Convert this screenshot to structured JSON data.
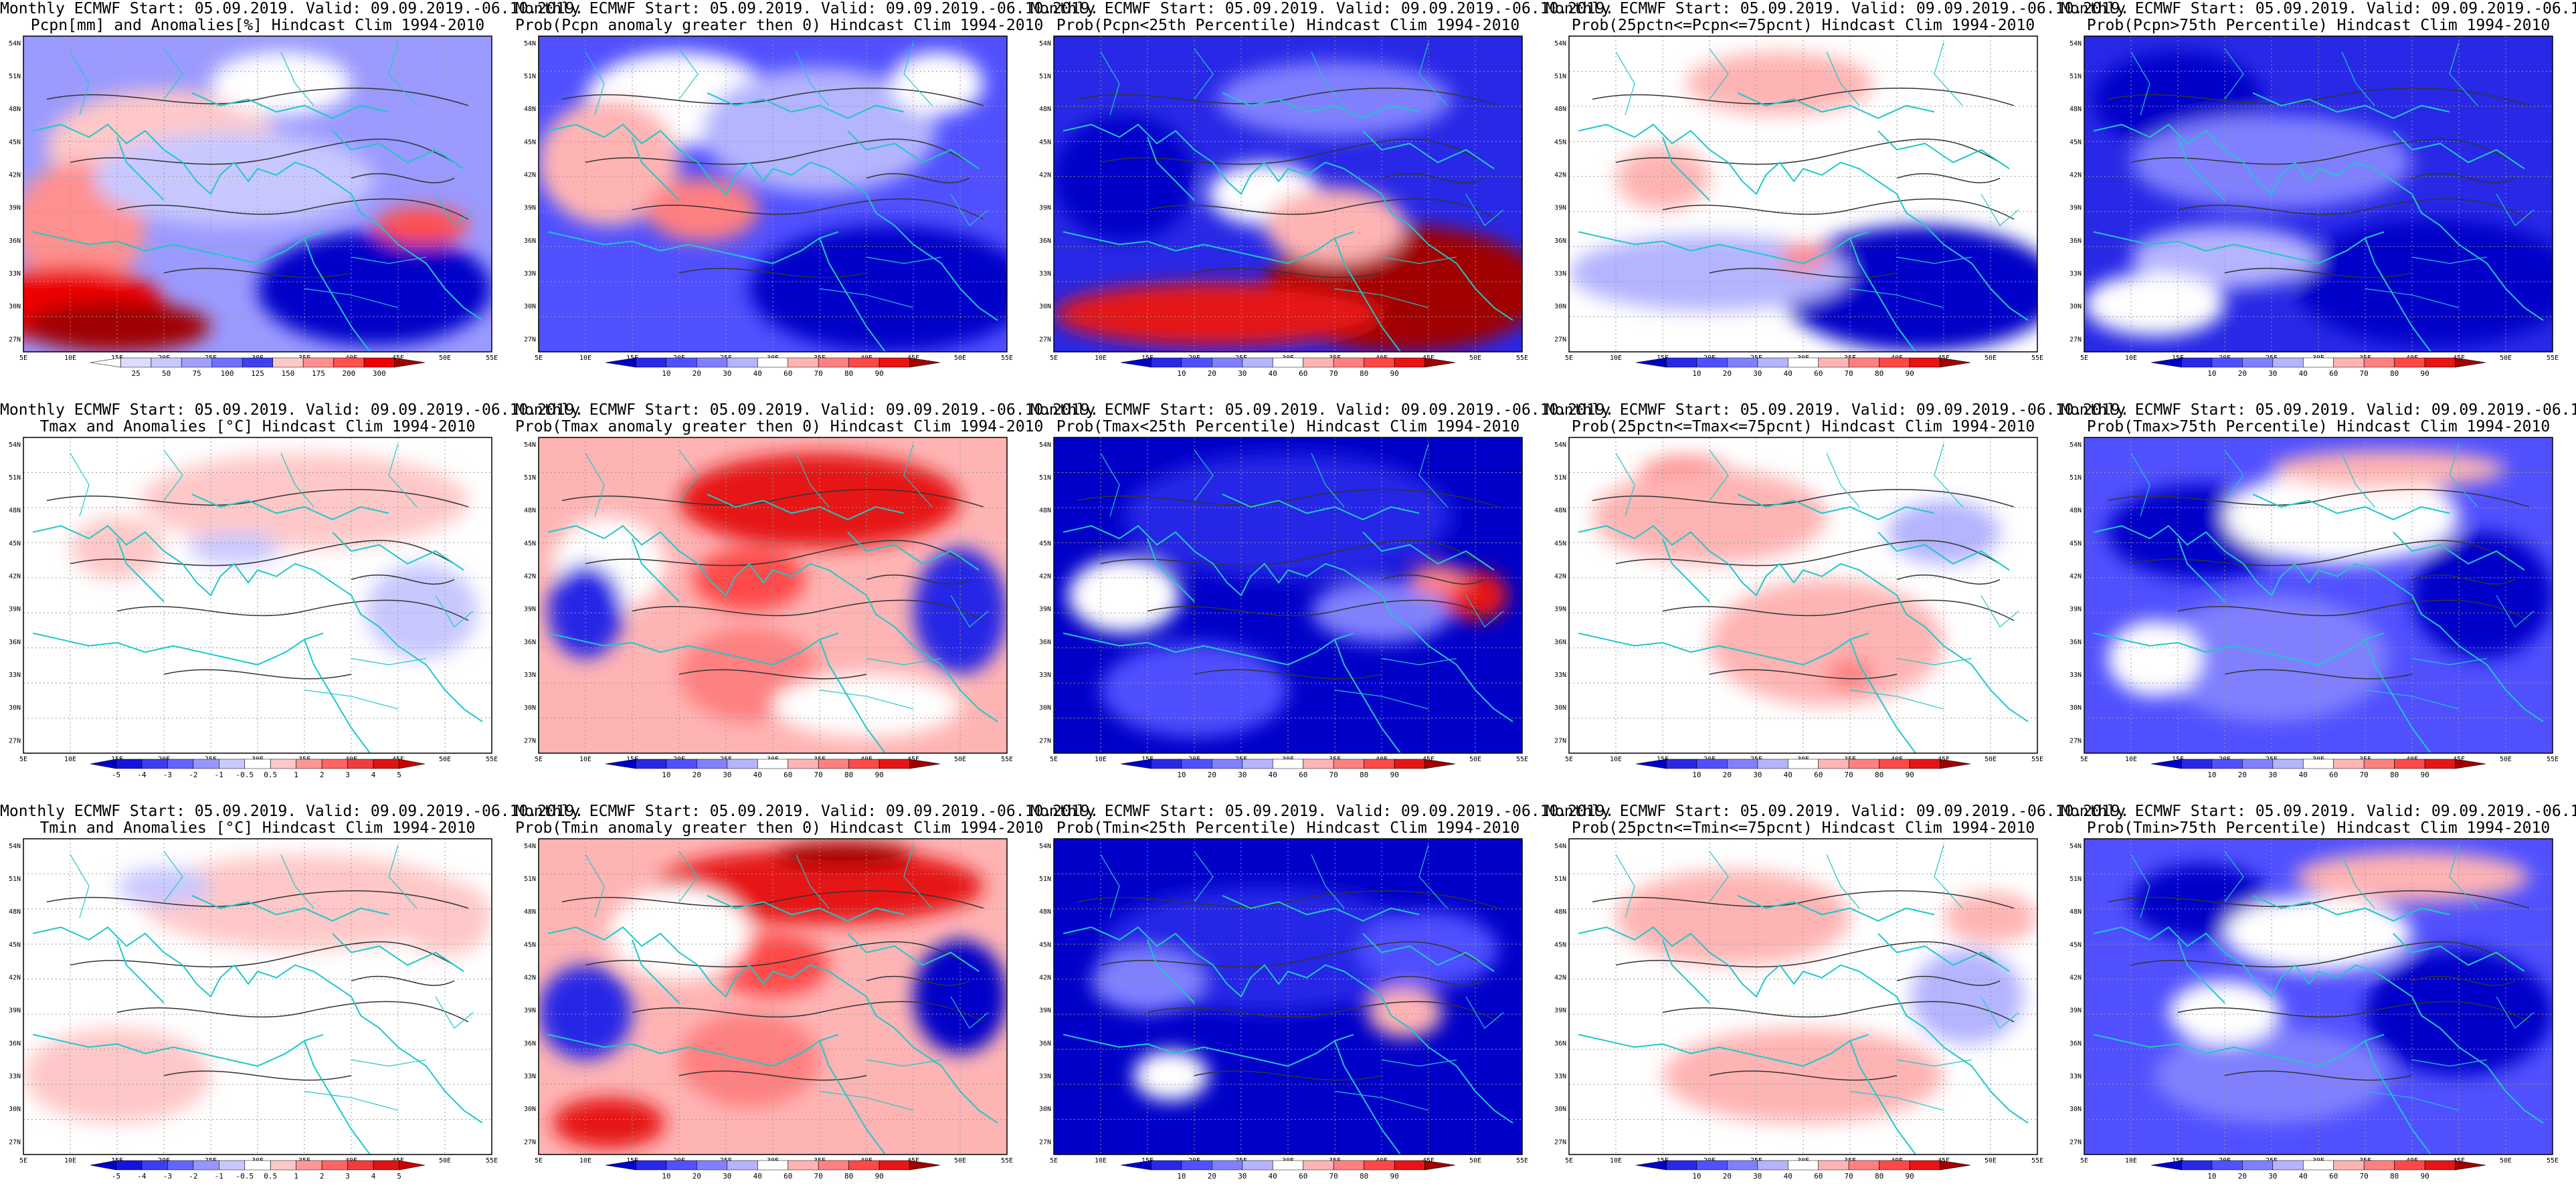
{
  "common": {
    "title_line1": "Monthly ECMWF Start: 05.09.2019. Valid: 09.09.2019.-06.10.2019."
  },
  "axes": {
    "lon_labels": [
      "5E",
      "10E",
      "15E",
      "20E",
      "25E",
      "30E",
      "35E",
      "40E",
      "45E",
      "50E",
      "55E"
    ],
    "lat_labels": [
      "27N",
      "30N",
      "33N",
      "36N",
      "39N",
      "42N",
      "45N",
      "48N",
      "51N",
      "54N"
    ]
  },
  "colorbars": {
    "pcpn_anom": {
      "labels": [
        "25",
        "50",
        "75",
        "100",
        "125",
        "150",
        "175",
        "200",
        "300"
      ],
      "colors": [
        "#ffffff",
        "#dcdcff",
        "#c8c8ff",
        "#a0a0ff",
        "#7070ff",
        "#4040f0",
        "#ffc8c8",
        "#ff9090",
        "#ff5050",
        "#ee0000",
        "#a00000"
      ]
    },
    "prob": {
      "labels": [
        "10",
        "20",
        "30",
        "40",
        "60",
        "70",
        "80",
        "90"
      ],
      "colors": [
        "#0000c8",
        "#2828e6",
        "#5050ff",
        "#8080ff",
        "#b4b4ff",
        "#ffffff",
        "#ffb4b4",
        "#ff8080",
        "#ff4848",
        "#e61414",
        "#a00000"
      ]
    },
    "temp_anom": {
      "labels": [
        "-5",
        "-4",
        "-3",
        "-2",
        "-1",
        "-0.5",
        "0.5",
        "1",
        "2",
        "3",
        "4",
        "5"
      ],
      "colors": [
        "#0000c8",
        "#1414dc",
        "#3c3cf0",
        "#6464ff",
        "#9696ff",
        "#c8c8ff",
        "#ffffff",
        "#ffc8c8",
        "#ff9696",
        "#ff6464",
        "#f03c3c",
        "#dc1414",
        "#c80000"
      ]
    }
  },
  "panels": [
    {
      "row": 0,
      "col": 0,
      "title2": "Pcpn[mm] and Anomalies[%] Hindcast Clim 1994-2010",
      "cbar": "pcpn_anom",
      "scheme": "p-anom"
    },
    {
      "row": 0,
      "col": 1,
      "title2": "Prob(Pcpn anomaly greater then 0) Hindcast Clim 1994-2010",
      "cbar": "prob",
      "scheme": "p-prob"
    },
    {
      "row": 0,
      "col": 2,
      "title2": "Prob(Pcpn<25th Percentile) Hindcast Clim 1994-2010",
      "cbar": "prob",
      "scheme": "p-low"
    },
    {
      "row": 0,
      "col": 3,
      "title2": "Prob(25pctn<=Pcpn<=75pcnt) Hindcast Clim 1994-2010",
      "cbar": "prob",
      "scheme": "p-mid"
    },
    {
      "row": 0,
      "col": 4,
      "title2": "Prob(Pcpn>75th Percentile) Hindcast Clim 1994-2010",
      "cbar": "prob",
      "scheme": "p-high"
    },
    {
      "row": 1,
      "col": 0,
      "title2": "Tmax and Anomalies [°C] Hindcast Clim 1994-2010",
      "cbar": "temp_anom",
      "scheme": "t-anom"
    },
    {
      "row": 1,
      "col": 1,
      "title2": "Prob(Tmax anomaly greater then 0) Hindcast Clim 1994-2010",
      "cbar": "prob",
      "scheme": "t-prob"
    },
    {
      "row": 1,
      "col": 2,
      "title2": "Prob(Tmax<25th Percentile) Hindcast Clim 1994-2010",
      "cbar": "prob",
      "scheme": "t-low"
    },
    {
      "row": 1,
      "col": 3,
      "title2": "Prob(25pctn<=Tmax<=75pcnt) Hindcast Clim 1994-2010",
      "cbar": "prob",
      "scheme": "t-mid"
    },
    {
      "row": 1,
      "col": 4,
      "title2": "Prob(Tmax>75th Percentile) Hindcast Clim 1994-2010",
      "cbar": "prob",
      "scheme": "t-high"
    },
    {
      "row": 2,
      "col": 0,
      "title2": "Tmin and Anomalies [°C] Hindcast Clim 1994-2010",
      "cbar": "temp_anom",
      "scheme": "t-anom2"
    },
    {
      "row": 2,
      "col": 1,
      "title2": "Prob(Tmin anomaly greater then 0) Hindcast Clim 1994-2010",
      "cbar": "prob",
      "scheme": "t-prob2"
    },
    {
      "row": 2,
      "col": 2,
      "title2": "Prob(Tmin<25th Percentile) Hindcast Clim 1994-2010",
      "cbar": "prob",
      "scheme": "t-low2"
    },
    {
      "row": 2,
      "col": 3,
      "title2": "Prob(25pctn<=Tmin<=75pcnt) Hindcast Clim 1994-2010",
      "cbar": "prob",
      "scheme": "t-mid2"
    },
    {
      "row": 2,
      "col": 4,
      "title2": "Prob(Tmin>75th Percentile) Hindcast Clim 1994-2010",
      "cbar": "prob",
      "scheme": "t-high2"
    }
  ]
}
